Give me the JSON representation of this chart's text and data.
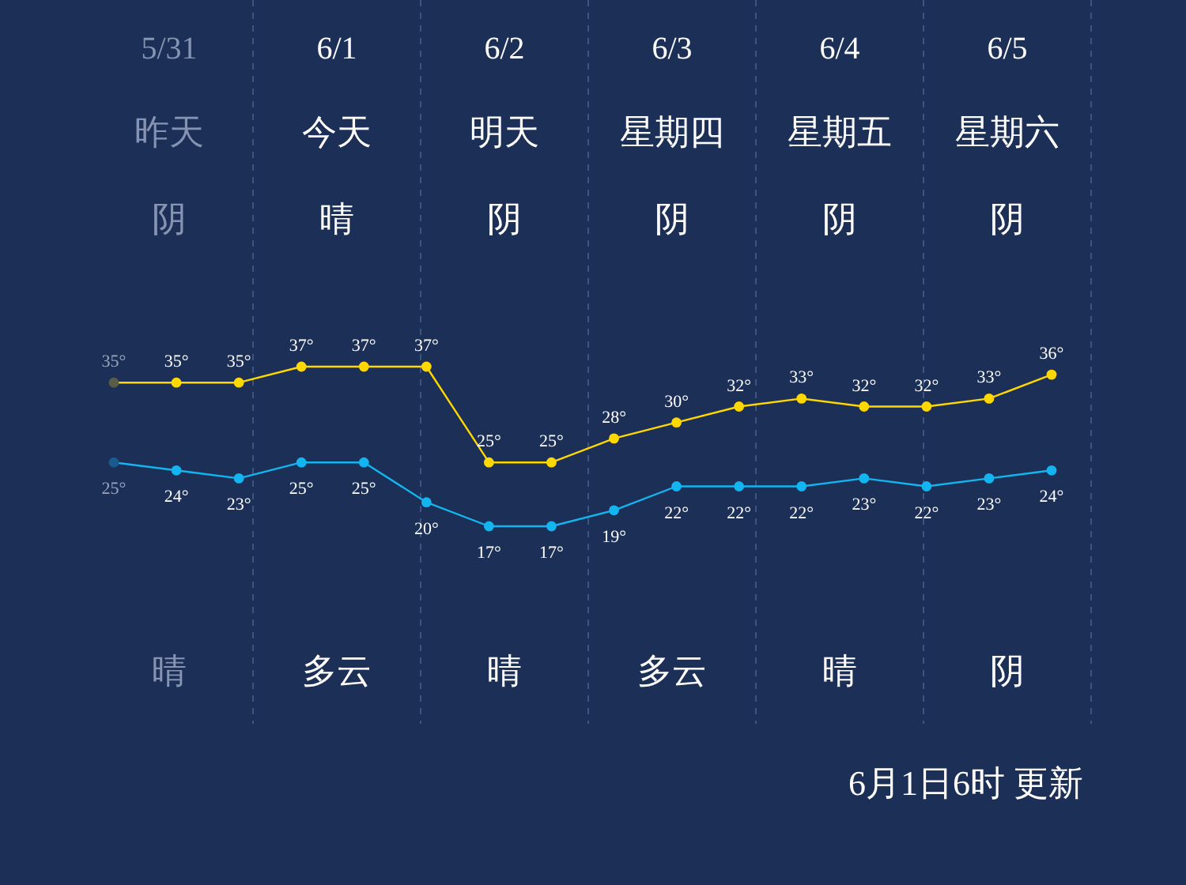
{
  "chart_data": {
    "type": "line",
    "categories": [
      null,
      null,
      null,
      null,
      null,
      null,
      null,
      null,
      null,
      null,
      null,
      null,
      null,
      null,
      null,
      null
    ],
    "series": [
      {
        "color": "#ffd800",
        "colors": [
          "#5a5c48",
          "#ffd800",
          "#ffd800",
          "#ffd800",
          "#ffd800",
          "#ffd800",
          "#ffd800",
          "#ffd800",
          "#ffd800",
          "#ffd800",
          "#ffd800",
          "#ffd800",
          "#ffd800",
          "#ffd800",
          "#ffd800",
          "#ffd800"
        ],
        "values": [
          35,
          35,
          35,
          37,
          37,
          37,
          25,
          25,
          28,
          30,
          32,
          33,
          32,
          32,
          33,
          36
        ],
        "value_labels": [
          "35°",
          "35°",
          "35°",
          "37°",
          "37°",
          "37°",
          "25°",
          "25°",
          "28°",
          "30°",
          "32°",
          "33°",
          "32°",
          "32°",
          "33°",
          "36°"
        ]
      },
      {
        "color": "#12b5f0",
        "colors": [
          "#1a5a8c",
          "#12b5f0",
          "#12b5f0",
          "#12b5f0",
          "#12b5f0",
          "#12b5f0",
          "#12b5f0",
          "#12b5f0",
          "#12b5f0",
          "#12b5f0",
          "#12b5f0",
          "#12b5f0",
          "#12b5f0",
          "#12b5f0",
          "#12b5f0",
          "#12b5f0"
        ],
        "values": [
          25,
          24,
          23,
          25,
          25,
          20,
          17,
          17,
          19,
          22,
          22,
          22,
          23,
          22,
          23,
          24
        ],
        "value_labels": [
          "25°",
          "24°",
          "23°",
          "25°",
          "25°",
          "20°",
          "17°",
          "17°",
          "19°",
          "22°",
          "22°",
          "22°",
          "23°",
          "22°",
          "23°",
          "24°"
        ]
      }
    ],
    "marker": "circle",
    "grid": "x",
    "annotations": [
      "5/31",
      "6/1",
      "6/2",
      "6/3",
      "6/4",
      "6/5",
      "昨天",
      "今天",
      "明天",
      "星期四",
      "星期五",
      "星期六",
      "阴",
      "晴",
      "阴",
      "阴",
      "阴",
      "阴",
      "晴",
      "多云",
      "晴",
      "多云",
      "晴",
      "阴",
      "6月1日6时 更新"
    ]
  }
}
